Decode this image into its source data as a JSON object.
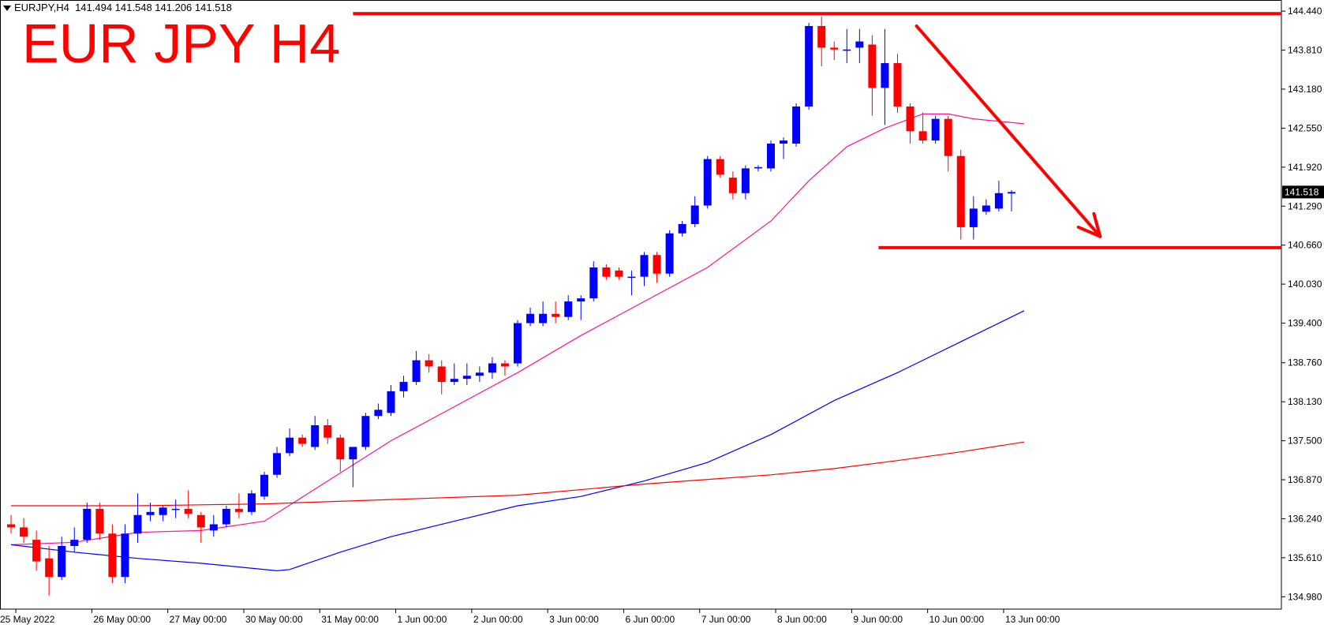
{
  "header": {
    "symbol": "EURJPY,H4",
    "ohlc": "141.494  141.548  141.206  141.518"
  },
  "annotation": {
    "title": "EUR JPY H4"
  },
  "colors": {
    "bull": "#0000ff",
    "bear": "#ff0000",
    "ma_fast": "#ff1493",
    "ma_mid": "#0000ff",
    "ma_slow": "#ff0000",
    "annotation": "#ff0000",
    "price_label_bg": "#000000"
  },
  "chart_data": {
    "type": "candlestick",
    "symbol": "EURJPY",
    "timeframe": "H4",
    "y_axis_ticks": [
      144.44,
      143.81,
      143.18,
      142.55,
      141.92,
      141.29,
      140.66,
      140.03,
      139.4,
      138.76,
      138.13,
      137.5,
      136.87,
      136.24,
      135.61,
      134.98
    ],
    "y_axis_labels": [
      "144.440",
      "143.810",
      "143.180",
      "142.550",
      "141.920",
      "141.290",
      "140.660",
      "140.030",
      "139.400",
      "138.760",
      "138.130",
      "137.500",
      "136.870",
      "136.240",
      "135.610",
      "134.980"
    ],
    "ylim": [
      134.78,
      144.62
    ],
    "x_axis_labels": [
      {
        "label": "25 May 2022",
        "bar": 1
      },
      {
        "label": "26 May 00:00",
        "bar": 7
      },
      {
        "label": "27 May 00:00",
        "bar": 13
      },
      {
        "label": "30 May 00:00",
        "bar": 19
      },
      {
        "label": "31 May 00:00",
        "bar": 25
      },
      {
        "label": "1 Jun 00:00",
        "bar": 31
      },
      {
        "label": "2 Jun 00:00",
        "bar": 37
      },
      {
        "label": "3 Jun 00:00",
        "bar": 43
      },
      {
        "label": "6 Jun 00:00",
        "bar": 49
      },
      {
        "label": "7 Jun 00:00",
        "bar": 55
      },
      {
        "label": "8 Jun 00:00",
        "bar": 61
      },
      {
        "label": "9 Jun 00:00",
        "bar": 67
      },
      {
        "label": "10 Jun 00:00",
        "bar": 73
      },
      {
        "label": "13 Jun 00:00",
        "bar": 79
      }
    ],
    "candles": [
      {
        "o": 136.15,
        "h": 136.3,
        "l": 136.0,
        "c": 136.1
      },
      {
        "o": 136.1,
        "h": 136.25,
        "l": 135.85,
        "c": 135.95
      },
      {
        "o": 135.9,
        "h": 136.05,
        "l": 135.4,
        "c": 135.55
      },
      {
        "o": 135.6,
        "h": 135.8,
        "l": 135.0,
        "c": 135.3
      },
      {
        "o": 135.3,
        "h": 135.95,
        "l": 135.25,
        "c": 135.8
      },
      {
        "o": 135.8,
        "h": 136.1,
        "l": 135.7,
        "c": 135.9
      },
      {
        "o": 135.9,
        "h": 136.5,
        "l": 135.85,
        "c": 136.4
      },
      {
        "o": 136.4,
        "h": 136.5,
        "l": 135.9,
        "c": 136.0
      },
      {
        "o": 136.0,
        "h": 136.15,
        "l": 135.2,
        "c": 135.3
      },
      {
        "o": 135.3,
        "h": 136.15,
        "l": 135.2,
        "c": 136.0
      },
      {
        "o": 136.0,
        "h": 136.65,
        "l": 135.85,
        "c": 136.3
      },
      {
        "o": 136.3,
        "h": 136.5,
        "l": 136.2,
        "c": 136.35
      },
      {
        "o": 136.3,
        "h": 136.45,
        "l": 136.2,
        "c": 136.42
      },
      {
        "o": 136.4,
        "h": 136.55,
        "l": 136.25,
        "c": 136.4
      },
      {
        "o": 136.4,
        "h": 136.7,
        "l": 136.25,
        "c": 136.32
      },
      {
        "o": 136.3,
        "h": 136.35,
        "l": 135.85,
        "c": 136.1
      },
      {
        "o": 136.05,
        "h": 136.3,
        "l": 135.95,
        "c": 136.15
      },
      {
        "o": 136.15,
        "h": 136.45,
        "l": 136.1,
        "c": 136.4
      },
      {
        "o": 136.4,
        "h": 136.65,
        "l": 136.25,
        "c": 136.35
      },
      {
        "o": 136.35,
        "h": 136.7,
        "l": 136.3,
        "c": 136.65
      },
      {
        "o": 136.6,
        "h": 137.0,
        "l": 136.55,
        "c": 136.95
      },
      {
        "o": 136.95,
        "h": 137.4,
        "l": 136.9,
        "c": 137.3
      },
      {
        "o": 137.3,
        "h": 137.7,
        "l": 137.25,
        "c": 137.55
      },
      {
        "o": 137.55,
        "h": 137.6,
        "l": 137.4,
        "c": 137.45
      },
      {
        "o": 137.4,
        "h": 137.9,
        "l": 137.35,
        "c": 137.75
      },
      {
        "o": 137.75,
        "h": 137.85,
        "l": 137.45,
        "c": 137.55
      },
      {
        "o": 137.55,
        "h": 137.6,
        "l": 137.0,
        "c": 137.2
      },
      {
        "o": 137.2,
        "h": 137.4,
        "l": 136.75,
        "c": 137.4
      },
      {
        "o": 137.4,
        "h": 137.95,
        "l": 137.35,
        "c": 137.9
      },
      {
        "o": 137.9,
        "h": 138.1,
        "l": 137.85,
        "c": 138.0
      },
      {
        "o": 137.95,
        "h": 138.4,
        "l": 137.9,
        "c": 138.3
      },
      {
        "o": 138.3,
        "h": 138.55,
        "l": 138.2,
        "c": 138.45
      },
      {
        "o": 138.45,
        "h": 138.95,
        "l": 138.4,
        "c": 138.8
      },
      {
        "o": 138.8,
        "h": 138.9,
        "l": 138.6,
        "c": 138.7
      },
      {
        "o": 138.7,
        "h": 138.8,
        "l": 138.25,
        "c": 138.45
      },
      {
        "o": 138.45,
        "h": 138.75,
        "l": 138.4,
        "c": 138.5
      },
      {
        "o": 138.5,
        "h": 138.75,
        "l": 138.4,
        "c": 138.55
      },
      {
        "o": 138.55,
        "h": 138.7,
        "l": 138.45,
        "c": 138.6
      },
      {
        "o": 138.6,
        "h": 138.85,
        "l": 138.5,
        "c": 138.75
      },
      {
        "o": 138.75,
        "h": 138.8,
        "l": 138.55,
        "c": 138.7
      },
      {
        "o": 138.75,
        "h": 139.45,
        "l": 138.7,
        "c": 139.4
      },
      {
        "o": 139.4,
        "h": 139.65,
        "l": 139.35,
        "c": 139.55
      },
      {
        "o": 139.4,
        "h": 139.75,
        "l": 139.35,
        "c": 139.55
      },
      {
        "o": 139.55,
        "h": 139.75,
        "l": 139.4,
        "c": 139.5
      },
      {
        "o": 139.5,
        "h": 139.85,
        "l": 139.45,
        "c": 139.75
      },
      {
        "o": 139.75,
        "h": 139.85,
        "l": 139.45,
        "c": 139.8
      },
      {
        "o": 139.8,
        "h": 140.4,
        "l": 139.75,
        "c": 140.3
      },
      {
        "o": 140.3,
        "h": 140.35,
        "l": 140.1,
        "c": 140.15
      },
      {
        "o": 140.25,
        "h": 140.3,
        "l": 140.1,
        "c": 140.15
      },
      {
        "o": 140.15,
        "h": 140.25,
        "l": 139.85,
        "c": 140.15
      },
      {
        "o": 140.15,
        "h": 140.55,
        "l": 140.0,
        "c": 140.5
      },
      {
        "o": 140.5,
        "h": 140.55,
        "l": 140.05,
        "c": 140.2
      },
      {
        "o": 140.2,
        "h": 140.9,
        "l": 140.15,
        "c": 140.85
      },
      {
        "o": 140.85,
        "h": 141.05,
        "l": 140.8,
        "c": 141.0
      },
      {
        "o": 141.0,
        "h": 141.45,
        "l": 140.95,
        "c": 141.3
      },
      {
        "o": 141.3,
        "h": 142.1,
        "l": 141.25,
        "c": 142.05
      },
      {
        "o": 142.05,
        "h": 142.1,
        "l": 141.75,
        "c": 141.8
      },
      {
        "o": 141.75,
        "h": 141.85,
        "l": 141.4,
        "c": 141.5
      },
      {
        "o": 141.5,
        "h": 141.95,
        "l": 141.4,
        "c": 141.9
      },
      {
        "o": 141.9,
        "h": 141.95,
        "l": 141.85,
        "c": 141.92
      },
      {
        "o": 141.9,
        "h": 142.35,
        "l": 141.85,
        "c": 142.3
      },
      {
        "o": 142.3,
        "h": 142.4,
        "l": 142.05,
        "c": 142.35
      },
      {
        "o": 142.3,
        "h": 142.95,
        "l": 142.25,
        "c": 142.9
      },
      {
        "o": 142.9,
        "h": 144.25,
        "l": 142.85,
        "c": 144.2
      },
      {
        "o": 144.2,
        "h": 144.35,
        "l": 143.55,
        "c": 143.85
      },
      {
        "o": 143.85,
        "h": 143.95,
        "l": 143.65,
        "c": 143.82
      },
      {
        "o": 143.8,
        "h": 144.15,
        "l": 143.6,
        "c": 143.82
      },
      {
        "o": 143.85,
        "h": 144.15,
        "l": 143.6,
        "c": 143.95
      },
      {
        "o": 143.9,
        "h": 144.05,
        "l": 142.75,
        "c": 143.2
      },
      {
        "o": 143.2,
        "h": 144.15,
        "l": 142.6,
        "c": 143.6
      },
      {
        "o": 143.6,
        "h": 143.75,
        "l": 142.8,
        "c": 142.9
      },
      {
        "o": 142.9,
        "h": 142.95,
        "l": 142.3,
        "c": 142.5
      },
      {
        "o": 142.5,
        "h": 142.8,
        "l": 142.3,
        "c": 142.35
      },
      {
        "o": 142.35,
        "h": 142.75,
        "l": 142.3,
        "c": 142.7
      },
      {
        "o": 142.7,
        "h": 142.75,
        "l": 141.85,
        "c": 142.1
      },
      {
        "o": 142.1,
        "h": 142.2,
        "l": 140.75,
        "c": 140.95
      },
      {
        "o": 140.95,
        "h": 141.45,
        "l": 140.75,
        "c": 141.25
      },
      {
        "o": 141.2,
        "h": 141.4,
        "l": 141.15,
        "c": 141.3
      },
      {
        "o": 141.25,
        "h": 141.7,
        "l": 141.2,
        "c": 141.5
      },
      {
        "o": 141.494,
        "h": 141.548,
        "l": 141.206,
        "c": 141.518
      }
    ],
    "series": [
      {
        "type": "line",
        "color": "#ff1493",
        "points": [
          [
            0,
            135.82
          ],
          [
            5,
            135.86
          ],
          [
            10,
            136.02
          ],
          [
            15,
            136.05
          ],
          [
            20,
            136.2
          ],
          [
            25,
            136.85
          ],
          [
            30,
            137.5
          ],
          [
            35,
            138.05
          ],
          [
            40,
            138.6
          ],
          [
            45,
            139.2
          ],
          [
            50,
            139.75
          ],
          [
            55,
            140.3
          ],
          [
            60,
            141.05
          ],
          [
            63,
            141.7
          ],
          [
            66,
            142.25
          ],
          [
            69,
            142.55
          ],
          [
            72,
            142.78
          ],
          [
            74,
            142.78
          ],
          [
            76,
            142.7
          ],
          [
            80,
            142.62
          ]
        ]
      },
      {
        "type": "line",
        "color": "#0000ff",
        "points": [
          [
            0,
            135.82
          ],
          [
            5,
            135.7
          ],
          [
            10,
            135.6
          ],
          [
            15,
            135.52
          ],
          [
            21,
            135.4
          ],
          [
            22,
            135.42
          ],
          [
            26,
            135.7
          ],
          [
            30,
            135.95
          ],
          [
            35,
            136.2
          ],
          [
            40,
            136.45
          ],
          [
            45,
            136.6
          ],
          [
            50,
            136.85
          ],
          [
            55,
            137.15
          ],
          [
            60,
            137.6
          ],
          [
            65,
            138.15
          ],
          [
            70,
            138.6
          ],
          [
            75,
            139.1
          ],
          [
            80,
            139.6
          ]
        ]
      },
      {
        "type": "line",
        "color": "#ff0000",
        "points": [
          [
            0,
            136.45
          ],
          [
            10,
            136.45
          ],
          [
            20,
            136.48
          ],
          [
            30,
            136.55
          ],
          [
            40,
            136.62
          ],
          [
            50,
            136.8
          ],
          [
            60,
            136.95
          ],
          [
            65,
            137.05
          ],
          [
            70,
            137.18
          ],
          [
            75,
            137.32
          ],
          [
            80,
            137.48
          ]
        ]
      }
    ],
    "current_price_label": "141.518",
    "current_price": 141.518,
    "hlines": [
      {
        "value": 144.4,
        "start_bar": 27,
        "end_bar": null
      },
      {
        "value": 140.62,
        "start_bar": 68.5,
        "end_bar": null
      }
    ],
    "arrow": {
      "from": [
        71.5,
        144.2
      ],
      "to": [
        86.0,
        140.8
      ]
    }
  }
}
